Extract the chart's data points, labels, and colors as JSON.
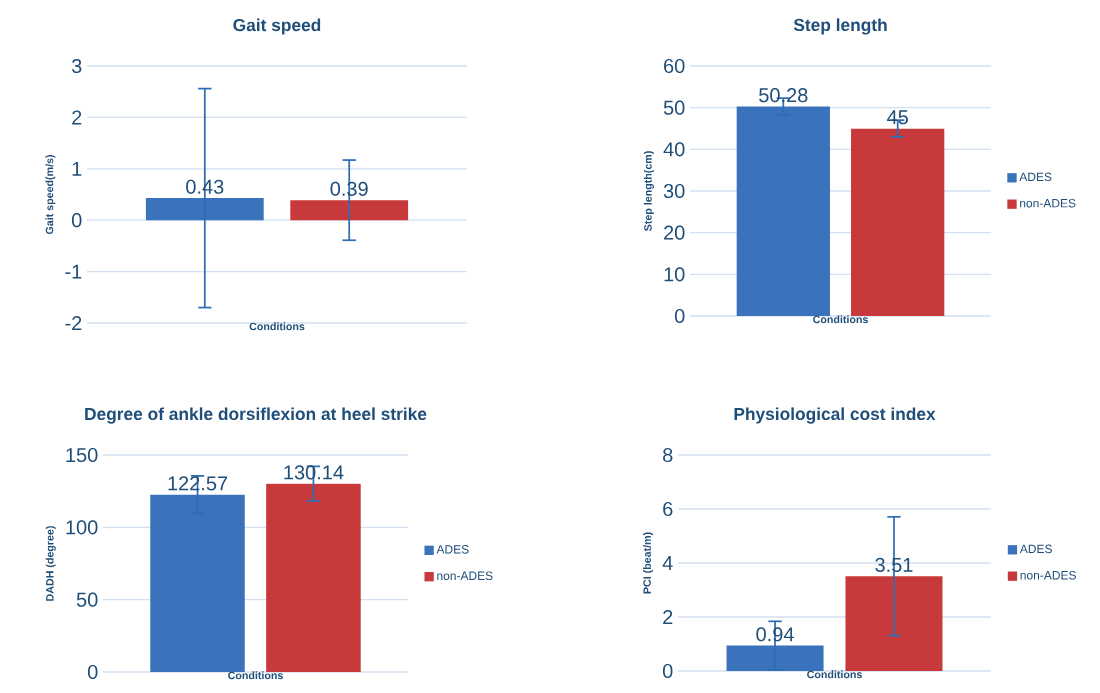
{
  "chart_data": [
    {
      "type": "bar",
      "title": "Gait speed",
      "xlabel": "Conditions",
      "ylabel": "Gait speed(m/s)",
      "categories": [
        null
      ],
      "ylim": [
        -2,
        3
      ],
      "yticks": [
        -2,
        -1,
        0,
        1,
        2,
        3
      ],
      "grid": "y",
      "legend": "right",
      "data_labels": true,
      "series": [
        {
          "color": "#3a72bb",
          "values": [
            0.43
          ],
          "errors": [
            2.13
          ]
        },
        {
          "color": "#c7393a",
          "values": [
            0.39
          ],
          "errors": [
            0.78
          ]
        }
      ]
    },
    {
      "type": "bar",
      "title": "Step length",
      "xlabel": "Conditions",
      "ylabel": "Step length(cm)",
      "categories": [
        null
      ],
      "ylim": [
        0,
        60
      ],
      "yticks": [
        0,
        10,
        20,
        30,
        40,
        50,
        60
      ],
      "grid": "y",
      "legend": "right",
      "data_labels": true,
      "series": [
        {
          "name": "ADES",
          "color": "#3a72bb",
          "values": [
            50.28
          ],
          "errors": [
            2
          ]
        },
        {
          "name": "non-ADES",
          "color": "#c7393a",
          "values": [
            45
          ],
          "errors": [
            2
          ]
        }
      ]
    },
    {
      "type": "bar",
      "title": "Degree of ankle dorsiflexion at heel strike",
      "xlabel": "Conditions",
      "ylabel": "DADH (degree)",
      "categories": [
        null
      ],
      "ylim": [
        0,
        150
      ],
      "yticks": [
        0,
        50,
        100,
        150
      ],
      "grid": "y",
      "legend": "right",
      "data_labels": true,
      "series": [
        {
          "name": "ADES",
          "color": "#3a72bb",
          "values": [
            122.57
          ],
          "errors": [
            13
          ]
        },
        {
          "name": "non-ADES",
          "color": "#c7393a",
          "values": [
            130.14
          ],
          "errors": [
            12
          ]
        }
      ]
    },
    {
      "type": "bar",
      "title": "Physiological cost index",
      "xlabel": "Conditions",
      "ylabel": "PCI (beat/m)",
      "categories": [
        null
      ],
      "ylim": [
        0,
        8
      ],
      "yticks": [
        0,
        2,
        4,
        6,
        8
      ],
      "grid": "y",
      "legend": "right",
      "data_labels": true,
      "series": [
        {
          "name": "ADES",
          "color": "#3a72bb",
          "values": [
            0.94
          ],
          "errors": [
            0.9
          ]
        },
        {
          "name": "non-ADES",
          "color": "#c7393a",
          "values": [
            3.51
          ],
          "errors": [
            2.2
          ]
        }
      ]
    }
  ]
}
